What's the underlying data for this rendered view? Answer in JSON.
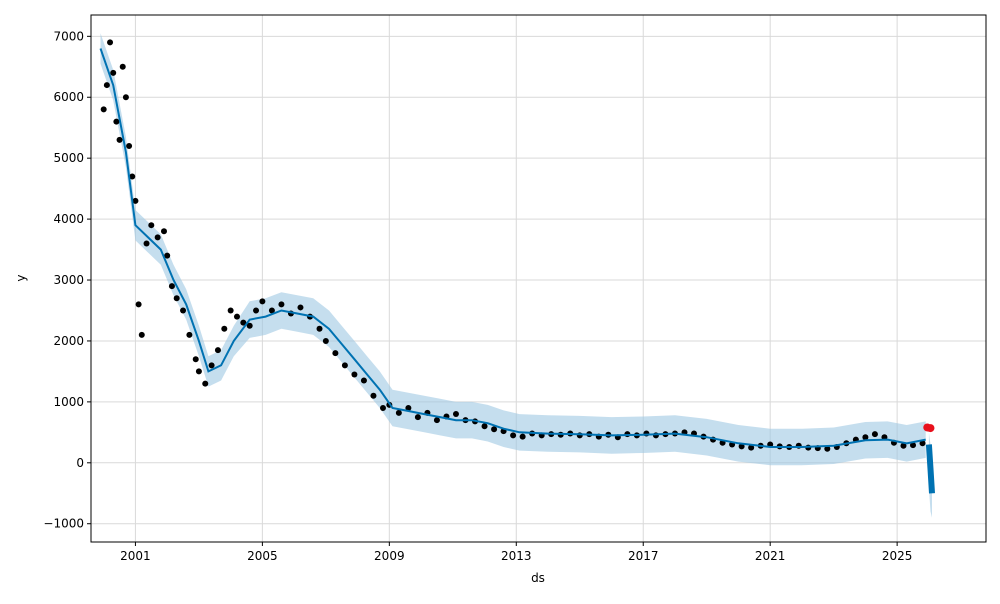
{
  "chart_data": {
    "type": "line",
    "title": "",
    "xlabel": "ds",
    "ylabel": "y",
    "xlim": [
      1999.6,
      2027.8
    ],
    "ylim": [
      -1300,
      7350
    ],
    "x_ticks": [
      2001,
      2005,
      2009,
      2013,
      2017,
      2021,
      2025
    ],
    "x_tick_labels": [
      "2001",
      "2005",
      "2009",
      "2013",
      "2017",
      "2021",
      "2025"
    ],
    "y_ticks": [
      -1000,
      0,
      1000,
      2000,
      3000,
      4000,
      5000,
      6000,
      7000
    ],
    "y_tick_labels": [
      "−1000",
      "0",
      "1000",
      "2000",
      "3000",
      "4000",
      "5000",
      "6000",
      "7000"
    ],
    "grid": true,
    "colors": {
      "observed": "#000000",
      "forecast": "#0072B2",
      "interval": "#9fc8e3",
      "highlight": "#e8101c"
    },
    "series": [
      {
        "role": "observed points",
        "x": [
          2000.0,
          2000.1,
          2000.2,
          2000.3,
          2000.4,
          2000.5,
          2000.6,
          2000.7,
          2000.8,
          2000.9,
          2001.0,
          2001.1,
          2001.2,
          2001.35,
          2001.5,
          2001.7,
          2001.9,
          2002.0,
          2002.15,
          2002.3,
          2002.5,
          2002.7,
          2002.9,
          2003.0,
          2003.2,
          2003.4,
          2003.6,
          2003.8,
          2004.0,
          2004.2,
          2004.4,
          2004.6,
          2004.8,
          2005.0,
          2005.3,
          2005.6,
          2005.9,
          2006.2,
          2006.5,
          2006.8,
          2007.0,
          2007.3,
          2007.6,
          2007.9,
          2008.2,
          2008.5,
          2008.8,
          2009.0,
          2009.3,
          2009.6,
          2009.9,
          2010.2,
          2010.5,
          2010.8,
          2011.1,
          2011.4,
          2011.7,
          2012.0,
          2012.3,
          2012.6,
          2012.9,
          2013.2,
          2013.5,
          2013.8,
          2014.1,
          2014.4,
          2014.7,
          2015.0,
          2015.3,
          2015.6,
          2015.9,
          2016.2,
          2016.5,
          2016.8,
          2017.1,
          2017.4,
          2017.7,
          2018.0,
          2018.3,
          2018.6,
          2018.9,
          2019.2,
          2019.5,
          2019.8,
          2020.1,
          2020.4,
          2020.7,
          2021.0,
          2021.3,
          2021.6,
          2021.9,
          2022.2,
          2022.5,
          2022.8,
          2023.1,
          2023.4,
          2023.7,
          2024.0,
          2024.3,
          2024.6,
          2024.9,
          2025.2,
          2025.5,
          2025.8,
          2026.0
        ],
        "y": [
          5800,
          6200,
          6900,
          6400,
          5600,
          5300,
          6500,
          6000,
          5200,
          4700,
          4300,
          2600,
          2100,
          3600,
          3900,
          3700,
          3800,
          3400,
          2900,
          2700,
          2500,
          2100,
          1700,
          1500,
          1300,
          1600,
          1850,
          2200,
          2500,
          2400,
          2300,
          2250,
          2500,
          2650,
          2500,
          2600,
          2450,
          2550,
          2400,
          2200,
          2000,
          1800,
          1600,
          1450,
          1350,
          1100,
          900,
          950,
          820,
          900,
          750,
          820,
          700,
          760,
          800,
          700,
          680,
          600,
          550,
          520,
          450,
          430,
          480,
          450,
          470,
          460,
          480,
          450,
          470,
          430,
          460,
          420,
          470,
          450,
          480,
          450,
          470,
          480,
          500,
          480,
          430,
          380,
          330,
          300,
          270,
          250,
          280,
          300,
          270,
          260,
          280,
          250,
          240,
          230,
          260,
          320,
          380,
          420,
          470,
          420,
          330,
          280,
          290,
          320,
          560
        ]
      },
      {
        "role": "forecast line",
        "x": [
          1999.9,
          2000.3,
          2000.7,
          2001.0,
          2001.4,
          2001.8,
          2002.2,
          2002.6,
          2003.0,
          2003.3,
          2003.7,
          2004.1,
          2004.6,
          2005.1,
          2005.6,
          2006.1,
          2006.6,
          2007.1,
          2007.5,
          2007.9,
          2008.3,
          2008.7,
          2009.1,
          2009.6,
          2010.1,
          2010.6,
          2011.1,
          2011.6,
          2012.1,
          2012.6,
          2013.1,
          2014.0,
          2015.0,
          2016.0,
          2017.0,
          2018.0,
          2019.0,
          2020.0,
          2021.0,
          2022.0,
          2023.0,
          2024.0,
          2024.7,
          2025.3,
          2025.9
        ],
        "y": [
          6800,
          6200,
          5100,
          3900,
          3700,
          3500,
          3000,
          2600,
          2000,
          1500,
          1600,
          2000,
          2350,
          2400,
          2500,
          2450,
          2400,
          2200,
          1950,
          1700,
          1450,
          1200,
          900,
          850,
          800,
          750,
          700,
          700,
          650,
          560,
          500,
          480,
          470,
          450,
          460,
          480,
          420,
          320,
          260,
          260,
          280,
          370,
          380,
          320,
          380
        ]
      },
      {
        "role": "uncertainty upper",
        "x": [
          1999.9,
          2000.3,
          2000.7,
          2001.0,
          2001.4,
          2001.8,
          2002.2,
          2002.6,
          2003.0,
          2003.3,
          2003.7,
          2004.1,
          2004.6,
          2005.1,
          2005.6,
          2006.1,
          2006.6,
          2007.1,
          2007.5,
          2007.9,
          2008.3,
          2008.7,
          2009.1,
          2009.6,
          2010.1,
          2010.6,
          2011.1,
          2011.6,
          2012.1,
          2012.6,
          2013.1,
          2014.0,
          2015.0,
          2016.0,
          2017.0,
          2018.0,
          2019.0,
          2020.0,
          2021.0,
          2022.0,
          2023.0,
          2024.0,
          2024.7,
          2025.3,
          2025.9
        ],
        "y": [
          7050,
          6450,
          5350,
          4150,
          3950,
          3750,
          3250,
          2850,
          2250,
          1750,
          1850,
          2250,
          2650,
          2700,
          2800,
          2750,
          2700,
          2500,
          2250,
          2000,
          1750,
          1500,
          1200,
          1150,
          1100,
          1050,
          1000,
          1000,
          950,
          860,
          800,
          780,
          770,
          750,
          760,
          780,
          720,
          620,
          560,
          560,
          580,
          670,
          680,
          620,
          680
        ]
      },
      {
        "role": "uncertainty lower",
        "x": [
          1999.9,
          2000.3,
          2000.7,
          2001.0,
          2001.4,
          2001.8,
          2002.2,
          2002.6,
          2003.0,
          2003.3,
          2003.7,
          2004.1,
          2004.6,
          2005.1,
          2005.6,
          2006.1,
          2006.6,
          2007.1,
          2007.5,
          2007.9,
          2008.3,
          2008.7,
          2009.1,
          2009.6,
          2010.1,
          2010.6,
          2011.1,
          2011.6,
          2012.1,
          2012.6,
          2013.1,
          2014.0,
          2015.0,
          2016.0,
          2017.0,
          2018.0,
          2019.0,
          2020.0,
          2021.0,
          2022.0,
          2023.0,
          2024.0,
          2024.7,
          2025.3,
          2025.9
        ],
        "y": [
          6550,
          5950,
          4850,
          3650,
          3450,
          3250,
          2750,
          2350,
          1750,
          1250,
          1350,
          1750,
          2050,
          2100,
          2200,
          2150,
          2100,
          1900,
          1650,
          1400,
          1150,
          900,
          600,
          550,
          500,
          450,
          400,
          400,
          350,
          260,
          200,
          180,
          170,
          150,
          160,
          180,
          120,
          20,
          -40,
          -40,
          -20,
          70,
          80,
          20,
          80
        ]
      },
      {
        "role": "forecast tail",
        "x": [
          2026.0,
          2026.05,
          2026.1
        ],
        "y": [
          300,
          -100,
          -500
        ],
        "lower": [
          -400,
          -800,
          -900
        ],
        "upper": [
          500,
          300,
          -200
        ]
      },
      {
        "role": "highlighted last points",
        "x": [
          2025.95,
          2026.05
        ],
        "y": [
          580,
          570
        ]
      }
    ]
  }
}
